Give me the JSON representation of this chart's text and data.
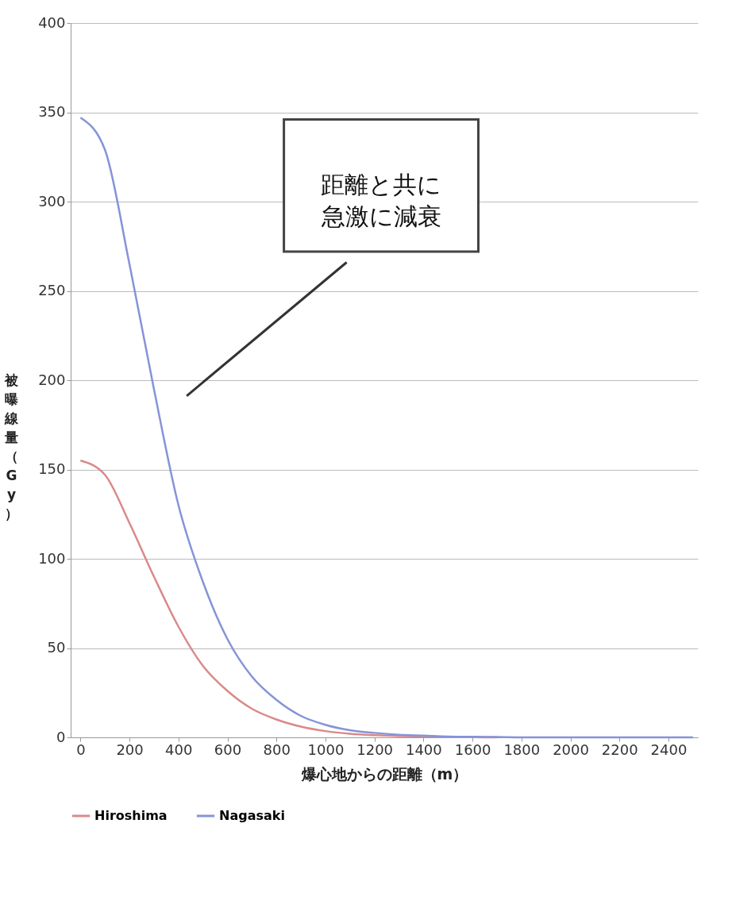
{
  "chart_data": {
    "type": "line",
    "xlabel": "爆心地からの距離（m）",
    "ylabel": "被曝線量（Gy）",
    "x": [
      0,
      100,
      200,
      300,
      400,
      500,
      600,
      700,
      800,
      900,
      1000,
      1100,
      1200,
      1300,
      1400,
      1500,
      1600,
      1700,
      1800,
      1900,
      2000,
      2100,
      2200,
      2300,
      2400,
      2500
    ],
    "series": [
      {
        "name": "Hiroshima",
        "color": "#d98a8a",
        "values": [
          155,
          147,
          120,
          90,
          62,
          40,
          26,
          16,
          10,
          6,
          3.5,
          2,
          1.2,
          0.7,
          0.4,
          0.2,
          0.1,
          0,
          null,
          null,
          null,
          null,
          null,
          null,
          null,
          null
        ]
      },
      {
        "name": "Nagasaki",
        "color": "#8494d8",
        "values": [
          347,
          329,
          265,
          195,
          130,
          87,
          55,
          34,
          21,
          12,
          7,
          4,
          2.5,
          1.5,
          1,
          0.5,
          0.3,
          0.2,
          0,
          0,
          0,
          0,
          0,
          0,
          0,
          0
        ]
      }
    ],
    "xlim": [
      -40,
      2520
    ],
    "xticks": [
      0,
      200,
      400,
      600,
      800,
      1000,
      1200,
      1400,
      1600,
      1800,
      2000,
      2200,
      2400
    ],
    "ylim": [
      0,
      400
    ],
    "yticks": [
      0,
      50,
      100,
      150,
      200,
      250,
      300,
      350,
      400
    ],
    "grid": "y",
    "legend": "bottom",
    "marker": "none",
    "line_style": "solid",
    "annotations": [
      "距離と共に急激に減衰"
    ]
  }
}
